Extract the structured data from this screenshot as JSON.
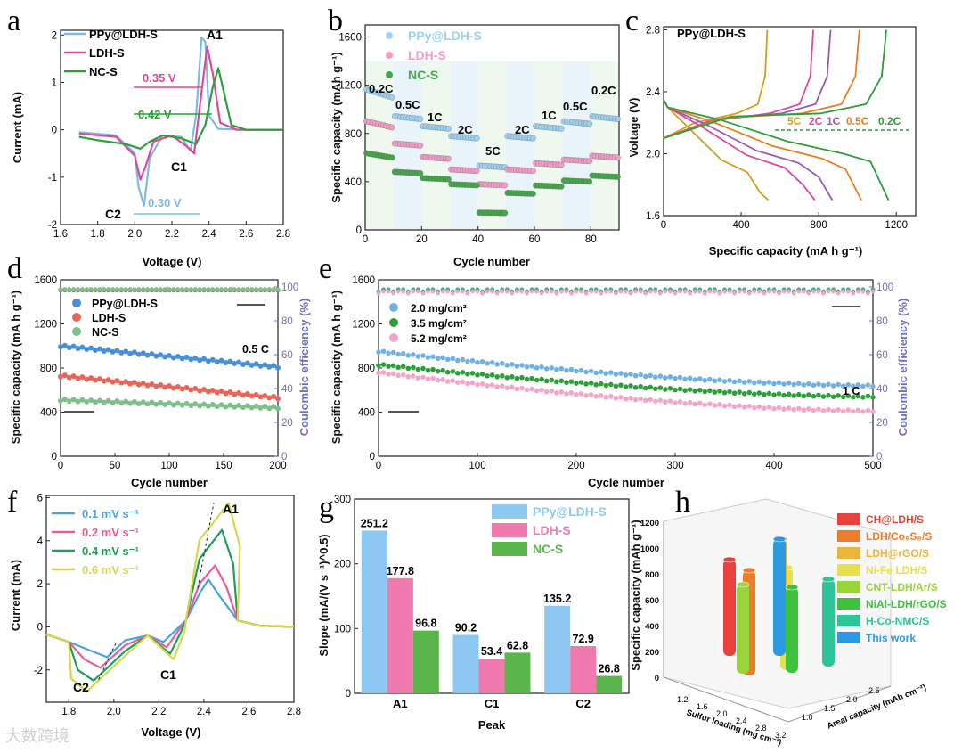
{
  "panel_letters": [
    "a",
    "b",
    "c",
    "d",
    "e",
    "f",
    "g",
    "h"
  ],
  "watermark": "大数跨境",
  "chart_data": [
    {
      "panel": "a",
      "type": "line",
      "xlabel": "Voltage (V)",
      "ylabel": "Current (mA)",
      "xlim": [
        1.6,
        2.8
      ],
      "ylim": [
        -2,
        2
      ],
      "xticks": [
        "1.6",
        "1.8",
        "2.0",
        "2.2",
        "2.4",
        "2.6",
        "2.8"
      ],
      "yticks": [
        "-2",
        "-1",
        "0",
        "1",
        "2"
      ],
      "legend": [
        "PPy@LDH-S",
        "LDH-S",
        "NC-S"
      ],
      "colors": [
        "#7dbbe6",
        "#d94a9a",
        "#2e9e3a"
      ],
      "annotations": {
        "a1": "A1",
        "c1": "C1",
        "c2": "C2",
        "gap_ldh": "0.35 V",
        "gap_nc": "0.42 V",
        "gap_ppy": "0.30 V"
      },
      "series": [
        {
          "name": "PPy@LDH-S",
          "x": [
            1.7,
            1.9,
            2.0,
            2.02,
            2.05,
            2.08,
            2.15,
            2.25,
            2.3,
            2.33,
            2.36,
            2.38,
            2.4,
            2.45,
            2.6,
            2.8
          ],
          "y": [
            -0.05,
            -0.12,
            -0.5,
            -1.2,
            -1.6,
            -0.6,
            -0.12,
            -0.15,
            -0.45,
            0.3,
            1.95,
            1.85,
            0.3,
            0.02,
            0.0,
            0.0
          ]
        },
        {
          "name": "LDH-S",
          "x": [
            1.7,
            1.9,
            2.0,
            2.03,
            2.06,
            2.1,
            2.2,
            2.28,
            2.32,
            2.36,
            2.39,
            2.42,
            2.46,
            2.55,
            2.8
          ],
          "y": [
            -0.08,
            -0.15,
            -0.55,
            -1.05,
            -0.75,
            -0.25,
            -0.12,
            -0.35,
            -0.5,
            0.8,
            1.75,
            1.2,
            0.15,
            0.0,
            0.0
          ]
        },
        {
          "name": "NC-S",
          "x": [
            1.7,
            1.8,
            1.95,
            2.03,
            2.08,
            2.15,
            2.25,
            2.33,
            2.38,
            2.42,
            2.45,
            2.48,
            2.52,
            2.6,
            2.8
          ],
          "y": [
            -0.15,
            -0.22,
            -0.3,
            -0.4,
            -0.25,
            -0.12,
            -0.18,
            -0.3,
            0.1,
            0.9,
            1.3,
            0.8,
            0.1,
            0.0,
            0.0
          ]
        }
      ]
    },
    {
      "panel": "b",
      "type": "scatter",
      "xlabel": "Cycle number",
      "ylabel": "Specific capacity (mAh g⁻¹)",
      "xlim": [
        0,
        90
      ],
      "ylim": [
        0,
        1700
      ],
      "xticks": [
        "0",
        "20",
        "40",
        "60",
        "80"
      ],
      "yticks": [
        "0",
        "400",
        "800",
        "1200",
        "1600"
      ],
      "legend": [
        "PPy@LDH-S",
        "LDH-S",
        "NC-S"
      ],
      "colors": [
        "#9fd0ef",
        "#f29cc8",
        "#46a64c"
      ],
      "rate_labels": [
        "0.2C",
        "0.5C",
        "1C",
        "2C",
        "5C",
        "2C",
        "1C",
        "0.5C",
        "0.2C"
      ],
      "series": [
        {
          "name": "PPy@LDH-S",
          "values": [
            1100,
            920,
            840,
            760,
            520,
            760,
            840,
            880,
            920
          ]
        },
        {
          "name": "LDH-S",
          "values": [
            850,
            700,
            590,
            490,
            370,
            490,
            540,
            570,
            600
          ]
        },
        {
          "name": "NC-S",
          "values": [
            600,
            470,
            420,
            370,
            140,
            300,
            360,
            400,
            440
          ]
        }
      ]
    },
    {
      "panel": "c",
      "type": "line",
      "title": "PPy@LDH-S",
      "xlabel": "Specific capacity (mA h g⁻¹)",
      "ylabel": "Voltage (V)",
      "xlim": [
        0,
        1300
      ],
      "ylim": [
        1.6,
        2.8
      ],
      "xticks": [
        "0",
        "400",
        "800",
        "1200"
      ],
      "yticks": [
        "1.6",
        "2.0",
        "2.4",
        "2.8"
      ],
      "rates": [
        "5C",
        "2C",
        "1C",
        "0.5C",
        "0.2C"
      ],
      "colors": [
        "#d4a017",
        "#d94a9a",
        "#9b59b6",
        "#e67e22",
        "#2e9e3a"
      ],
      "discharge_capacities": [
        540,
        780,
        870,
        1020,
        1160
      ]
    },
    {
      "panel": "d",
      "type": "scatter",
      "xlabel": "Cycle number",
      "ylabel": "Specific capacity (mA h g⁻¹)",
      "y2label": "Coulombic efficiency (%)",
      "xlim": [
        0,
        200
      ],
      "ylim": [
        0,
        1600
      ],
      "y2lim": [
        0,
        100
      ],
      "xticks": [
        "0",
        "50",
        "100",
        "150",
        "200"
      ],
      "yticks": [
        "0",
        "400",
        "800",
        "1200",
        "1600"
      ],
      "y2ticks": [
        "0",
        "20",
        "40",
        "60",
        "80",
        "100"
      ],
      "rate": "0.5 C",
      "legend": [
        "PPy@LDH-S",
        "LDH-S",
        "NC-S"
      ],
      "colors": [
        "#4a90d9",
        "#e8655a",
        "#7fbf8a"
      ],
      "series": [
        {
          "name": "PPy@LDH-S",
          "start": 1000,
          "end": 810
        },
        {
          "name": "LDH-S",
          "start": 730,
          "end": 530
        },
        {
          "name": "NC-S",
          "start": 510,
          "end": 440
        }
      ],
      "efficiency": 98
    },
    {
      "panel": "e",
      "type": "scatter",
      "xlabel": "Cycle number",
      "ylabel": "Specific capacity (mA h g⁻¹)",
      "y2label": "Coulombic efficiency (%)",
      "xlim": [
        0,
        500
      ],
      "ylim": [
        0,
        1600
      ],
      "y2lim": [
        0,
        100
      ],
      "xticks": [
        "0",
        "100",
        "200",
        "300",
        "400",
        "500"
      ],
      "yticks": [
        "0",
        "400",
        "800",
        "1200",
        "1600"
      ],
      "y2ticks": [
        "0",
        "20",
        "40",
        "60",
        "80",
        "100"
      ],
      "rate": "1 C",
      "legend": [
        "2.0 mg/cm²",
        "3.5 mg/cm²",
        "5.2 mg/cm²"
      ],
      "colors": [
        "#6fb1e6",
        "#2e9e3a",
        "#f2a6c8"
      ],
      "series": [
        {
          "name": "2.0 mg/cm²",
          "start": 950,
          "end": 640
        },
        {
          "name": "3.5 mg/cm²",
          "start": 830,
          "end": 540
        },
        {
          "name": "5.2 mg/cm²",
          "start": 760,
          "end": 410
        }
      ],
      "efficiency": 98
    },
    {
      "panel": "f",
      "type": "line",
      "xlabel": "Voltage (V)",
      "ylabel": "Current (mA)",
      "xlim": [
        1.7,
        2.8
      ],
      "ylim": [
        -3.5,
        6
      ],
      "xticks": [
        "1.8",
        "2.0",
        "2.2",
        "2.4",
        "2.6",
        "2.8"
      ],
      "yticks": [
        "-2",
        "0",
        "2",
        "4",
        "6"
      ],
      "legend": [
        "0.1 mV s⁻¹",
        "0.2 mV s⁻¹",
        "0.4 mV s⁻¹",
        "0.6 mV s⁻¹"
      ],
      "colors": [
        "#4aa3df",
        "#e85c9c",
        "#1e9e5a",
        "#d4d84a"
      ],
      "annotations": {
        "a1": "A1",
        "c1": "C1",
        "c2": "C2"
      },
      "peaks_a1": [
        2.2,
        2.85,
        4.5,
        5.75
      ],
      "peaks_c2": [
        -1.4,
        -1.9,
        -2.5,
        -3.0
      ]
    },
    {
      "panel": "g",
      "type": "bar",
      "xlabel": "Peak",
      "ylabel": "Slope (mA/(V s⁻¹)^0.5)",
      "categories": [
        "A1",
        "C1",
        "C2"
      ],
      "ylim": [
        0,
        300
      ],
      "yticks": [
        "0",
        "100",
        "200",
        "300"
      ],
      "colors": [
        "#8dc8f2",
        "#f07aae",
        "#5ab64a"
      ],
      "series": [
        {
          "name": "PPy@LDH-S",
          "values": [
            251.2,
            90.2,
            135.2
          ],
          "labels": [
            "251.2",
            "90.2",
            "135.2"
          ]
        },
        {
          "name": "LDH-S",
          "values": [
            177.8,
            53.4,
            72.9
          ],
          "labels": [
            "177.8",
            "53.4",
            "72.9"
          ]
        },
        {
          "name": "NC-S",
          "values": [
            96.8,
            62.8,
            26.8
          ],
          "labels": [
            "96.8",
            "62.8",
            "26.8"
          ]
        }
      ]
    },
    {
      "panel": "h",
      "type": "bar",
      "zlabel": "Specific capacity (mAh g⁻¹)",
      "xlabel": "Sulfur loading (mg cm⁻²)",
      "ylabel": "Areal capacity (mAh cm⁻²)",
      "zticks": [
        "0",
        "200",
        "400",
        "600",
        "800",
        "1000",
        "1200"
      ],
      "xticks": [
        "1.2",
        "1.6",
        "2.0",
        "2.4",
        "2.8",
        "3.2"
      ],
      "yticks": [
        "1.0",
        "1.5",
        "2.0",
        "2.5"
      ],
      "legend": [
        "CH@LDH/S",
        "LDH/Co₉S₈/S",
        "LDH@rGO/S",
        "Ni-Fe LDH/S",
        "CNT-LDH/Ar/S",
        "NiAl-LDH/rGO/S",
        "H-Co-NMC/S",
        "This work"
      ],
      "colors": [
        "#e8403a",
        "#ee7d2a",
        "#e9b53a",
        "#e6e04a",
        "#9ad43a",
        "#3ec23e",
        "#2ec49a",
        "#2b9ae0"
      ]
    }
  ]
}
